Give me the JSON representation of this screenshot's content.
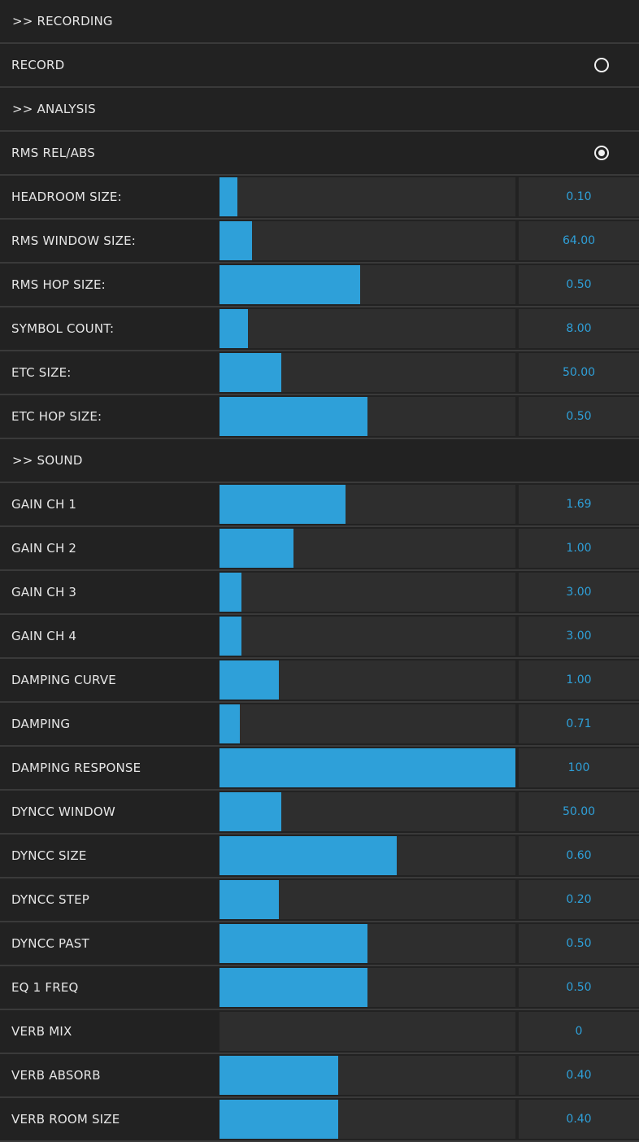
{
  "rows": [
    {
      "kind": "section",
      "label": ">> RECORDING"
    },
    {
      "kind": "toggle",
      "label": "RECORD",
      "on": false
    },
    {
      "kind": "section",
      "label": ">> ANALYSIS"
    },
    {
      "kind": "toggle",
      "label": "RMS REL/ABS",
      "on": true
    },
    {
      "kind": "slider",
      "label": "HEADROOM SIZE:",
      "value": "0.10",
      "fill": 0.06
    },
    {
      "kind": "slider",
      "label": "RMS WINDOW SIZE:",
      "value": "64.00",
      "fill": 0.11
    },
    {
      "kind": "slider",
      "label": "RMS HOP SIZE:",
      "value": "0.50",
      "fill": 0.475
    },
    {
      "kind": "slider",
      "label": "SYMBOL COUNT:",
      "value": "8.00",
      "fill": 0.095
    },
    {
      "kind": "slider",
      "label": "ETC SIZE:",
      "value": "50.00",
      "fill": 0.21
    },
    {
      "kind": "slider",
      "label": "ETC HOP SIZE:",
      "value": "0.50",
      "fill": 0.5
    },
    {
      "kind": "section",
      "label": ">> SOUND"
    },
    {
      "kind": "slider",
      "label": "GAIN CH 1",
      "value": "1.69",
      "fill": 0.425
    },
    {
      "kind": "slider",
      "label": "GAIN CH 2",
      "value": "1.00",
      "fill": 0.25
    },
    {
      "kind": "slider",
      "label": "GAIN CH 3",
      "value": "3.00",
      "fill": 0.075
    },
    {
      "kind": "slider",
      "label": "GAIN CH 4",
      "value": "3.00",
      "fill": 0.075
    },
    {
      "kind": "slider",
      "label": "DAMPING CURVE",
      "value": "1.00",
      "fill": 0.2
    },
    {
      "kind": "slider",
      "label": "DAMPING",
      "value": "0.71",
      "fill": 0.07
    },
    {
      "kind": "slider",
      "label": "DAMPING RESPONSE",
      "value": "100",
      "fill": 1.0
    },
    {
      "kind": "slider",
      "label": "DYNCC WINDOW",
      "value": "50.00",
      "fill": 0.21
    },
    {
      "kind": "slider",
      "label": "DYNCC SIZE",
      "value": "0.60",
      "fill": 0.6
    },
    {
      "kind": "slider",
      "label": "DYNCC STEP",
      "value": "0.20",
      "fill": 0.2
    },
    {
      "kind": "slider",
      "label": "DYNCC PAST",
      "value": "0.50",
      "fill": 0.5
    },
    {
      "kind": "slider",
      "label": "EQ 1 FREQ",
      "value": "0.50",
      "fill": 0.5
    },
    {
      "kind": "slider",
      "label": "VERB MIX",
      "value": "0",
      "fill": 0.0
    },
    {
      "kind": "slider",
      "label": "VERB ABSORB",
      "value": "0.40",
      "fill": 0.4
    },
    {
      "kind": "slider",
      "label": "VERB ROOM SIZE",
      "value": "0.40",
      "fill": 0.4
    }
  ],
  "colors": {
    "accent": "#2ea0d9",
    "row_bg": "#222222",
    "track_bg": "#2e2e2e",
    "separator": "#3a3a3a",
    "text": "#e6e6e6"
  }
}
